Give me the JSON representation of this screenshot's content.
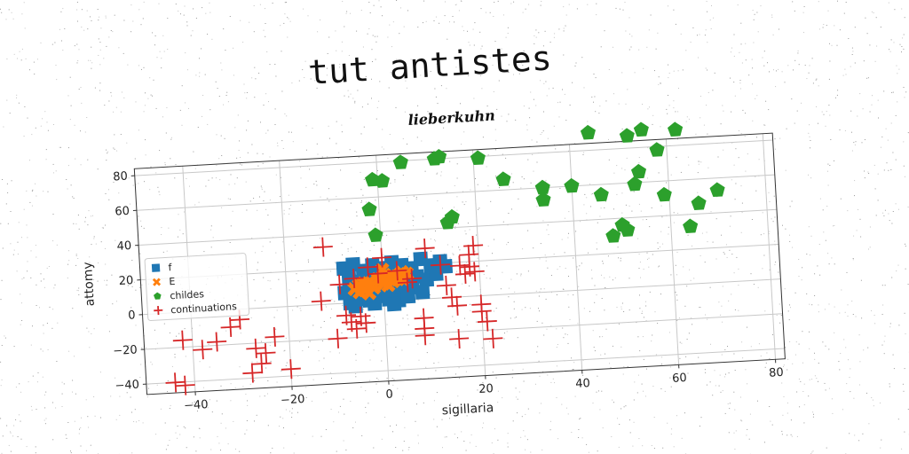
{
  "title": "tut antistes",
  "chart_data": {
    "type": "scatter",
    "title": "lieberkuhn",
    "xlabel": "sigillaria",
    "ylabel": "attomy",
    "xlim": [
      -50,
      82
    ],
    "ylim": [
      -46,
      84
    ],
    "xticks": [
      -40,
      -20,
      0,
      20,
      40,
      60,
      80
    ],
    "yticks": [
      -40,
      -20,
      0,
      20,
      40,
      60,
      80
    ],
    "grid": true,
    "legend_position": "center-left",
    "series": [
      {
        "name": "f",
        "marker": "square",
        "color": "#1f77b4",
        "points": [
          [
            -8,
            20
          ],
          [
            -6,
            22
          ],
          [
            -4,
            18
          ],
          [
            -2,
            21
          ],
          [
            0,
            19
          ],
          [
            2,
            22
          ],
          [
            4,
            20
          ],
          [
            6,
            18
          ],
          [
            8,
            23
          ],
          [
            10,
            19
          ],
          [
            12,
            21
          ],
          [
            -7,
            14
          ],
          [
            -5,
            12
          ],
          [
            -3,
            15
          ],
          [
            -1,
            13
          ],
          [
            1,
            16
          ],
          [
            3,
            12
          ],
          [
            5,
            15
          ],
          [
            7,
            13
          ],
          [
            9,
            11
          ],
          [
            11,
            14
          ],
          [
            -8,
            6
          ],
          [
            -6,
            8
          ],
          [
            -4,
            5
          ],
          [
            -2,
            7
          ],
          [
            0,
            6
          ],
          [
            2,
            8
          ],
          [
            4,
            5
          ],
          [
            6,
            7
          ],
          [
            8,
            4
          ],
          [
            -7,
            0
          ],
          [
            -5,
            2
          ],
          [
            -3,
            1
          ],
          [
            -1,
            3
          ],
          [
            1,
            1
          ],
          [
            3,
            0
          ],
          [
            5,
            2
          ],
          [
            13,
            18
          ],
          [
            -6,
            -2
          ],
          [
            -2,
            -1
          ],
          [
            2,
            -2
          ]
        ]
      },
      {
        "name": "E",
        "marker": "x",
        "color": "#ff7f0e",
        "points": [
          [
            -6,
            8
          ],
          [
            -5,
            10
          ],
          [
            -4,
            7
          ],
          [
            -3,
            11
          ],
          [
            -2,
            9
          ],
          [
            -1,
            12
          ],
          [
            0,
            10
          ],
          [
            1,
            13
          ],
          [
            2,
            11
          ],
          [
            3,
            14
          ],
          [
            4,
            12
          ],
          [
            5,
            15
          ],
          [
            -5,
            6
          ],
          [
            -2,
            8
          ],
          [
            0,
            14
          ],
          [
            1,
            9
          ],
          [
            3,
            12
          ],
          [
            -4,
            11
          ],
          [
            -3,
            5
          ],
          [
            2,
            15
          ],
          [
            4,
            16
          ],
          [
            -1,
            13
          ],
          [
            0,
            18
          ]
        ]
      },
      {
        "name": "childes",
        "marker": "pentagon",
        "color": "#2ca02c",
        "points": [
          [
            -1,
            70
          ],
          [
            1,
            69
          ],
          [
            5,
            79
          ],
          [
            12,
            80
          ],
          [
            13,
            81
          ],
          [
            21,
            79
          ],
          [
            26,
            66
          ],
          [
            34,
            60
          ],
          [
            34,
            53
          ],
          [
            40,
            60
          ],
          [
            46,
            54
          ],
          [
            44,
            90
          ],
          [
            48,
            30
          ],
          [
            50,
            36
          ],
          [
            51,
            33
          ],
          [
            52,
            87
          ],
          [
            53,
            59
          ],
          [
            54,
            66
          ],
          [
            55,
            90
          ],
          [
            58,
            78
          ],
          [
            59,
            52
          ],
          [
            62,
            89
          ],
          [
            64,
            33
          ],
          [
            66,
            46
          ],
          [
            70,
            53
          ],
          [
            -2,
            53
          ],
          [
            -1,
            38
          ],
          [
            14,
            43
          ],
          [
            15,
            46
          ]
        ]
      },
      {
        "name": "continuations",
        "marker": "plus",
        "color": "#d62728",
        "points": [
          [
            -12,
            33
          ],
          [
            -13,
            2
          ],
          [
            -10,
            -20
          ],
          [
            -8,
            -7
          ],
          [
            -7,
            -11
          ],
          [
            -6,
            -15
          ],
          [
            -5,
            -8
          ],
          [
            -4,
            -12
          ],
          [
            -9,
            11
          ],
          [
            -6,
            14
          ],
          [
            -3,
            20
          ],
          [
            0,
            25
          ],
          [
            -1,
            16
          ],
          [
            3,
            17
          ],
          [
            5,
            10
          ],
          [
            6,
            12
          ],
          [
            8,
            -11
          ],
          [
            8,
            -17
          ],
          [
            8,
            -21
          ],
          [
            9,
            29
          ],
          [
            12,
            19
          ],
          [
            13,
            7
          ],
          [
            14,
            0
          ],
          [
            15,
            -5
          ],
          [
            15,
            -24
          ],
          [
            16,
            18
          ],
          [
            17,
            13
          ],
          [
            18,
            24
          ],
          [
            18,
            17
          ],
          [
            19,
            29
          ],
          [
            19,
            14
          ],
          [
            20,
            -5
          ],
          [
            20,
            -9
          ],
          [
            21,
            -15
          ],
          [
            22,
            -25
          ],
          [
            -20,
            -36
          ],
          [
            -23,
            -17
          ],
          [
            -25,
            -26
          ],
          [
            -26,
            -32
          ],
          [
            -27,
            -23
          ],
          [
            -28,
            -37
          ],
          [
            -30,
            -6
          ],
          [
            -32,
            -10
          ],
          [
            -35,
            -18
          ],
          [
            -38,
            -22
          ],
          [
            -42,
            -42
          ],
          [
            -44,
            -40
          ],
          [
            -42,
            -16
          ]
        ]
      }
    ]
  }
}
